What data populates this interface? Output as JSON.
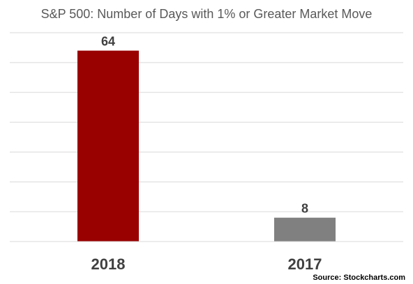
{
  "chart_data": {
    "type": "bar",
    "title": "S&P 500: Number of Days with 1% or Greater Market Move",
    "categories": [
      "2018",
      "2017"
    ],
    "values": [
      64,
      8
    ],
    "data_labels": [
      "64",
      "8"
    ],
    "bar_colors": [
      "#990000",
      "#808080"
    ],
    "xlabel": "",
    "ylabel": "",
    "ylim": [
      0,
      70
    ],
    "y_grid_step": 10,
    "grid": true,
    "legend": "none",
    "source": "Source: Stockcharts.com"
  }
}
